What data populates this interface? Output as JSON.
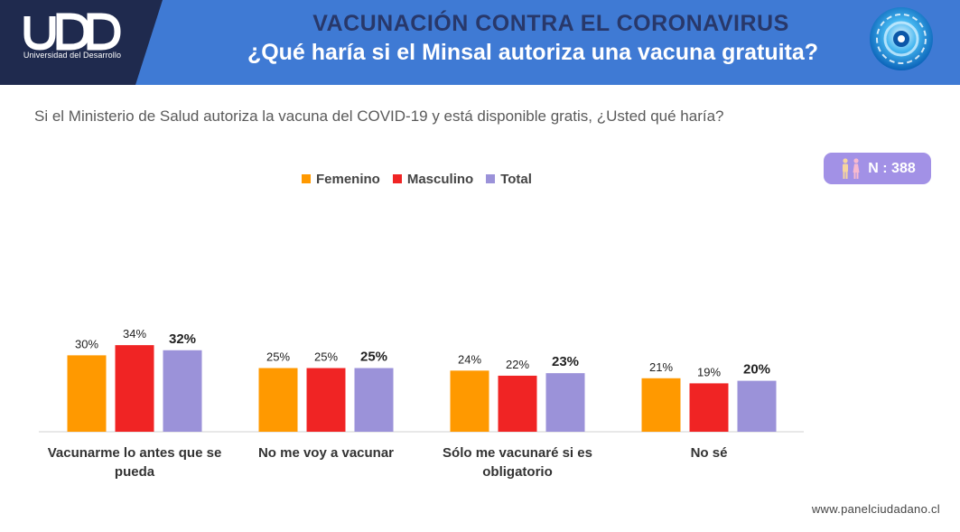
{
  "header": {
    "logo_text": "UDD",
    "logo_caption": "Universidad del Desarrollo",
    "title": "VACUNACIÓN CONTRA EL CORONAVIRUS",
    "subtitle": "¿Qué haría si el Minsal autoriza una vacuna gratuita?"
  },
  "question": "Si el Ministerio de Salud autoriza la vacuna del COVID-19 y está disponible gratis, ¿Usted qué haría?",
  "badge": {
    "label": "N : 388"
  },
  "footer": {
    "url": "www.panelciudadano.cl"
  },
  "colors": {
    "header_bg": "#3f7ad4",
    "logo_bg": "#1f2a4e",
    "femenino": "#ff9900",
    "masculino": "#f02424",
    "total": "#9b92d9",
    "badge_bg": "#a291e6"
  },
  "chart_data": {
    "type": "bar",
    "categories": [
      [
        "Vacunarme lo antes que se",
        "pueda"
      ],
      [
        "No me voy a vacunar"
      ],
      [
        "Sólo me vacunaré si es",
        "obligatorio"
      ],
      [
        "No sé"
      ]
    ],
    "series": [
      {
        "name": "Femenino",
        "color": "#ff9900",
        "values": [
          30,
          25,
          24,
          21
        ],
        "labels": [
          "30%",
          "25%",
          "24%",
          "21%"
        ]
      },
      {
        "name": "Masculino",
        "color": "#f02424",
        "values": [
          34,
          25,
          22,
          19
        ],
        "labels": [
          "34%",
          "25%",
          "22%",
          "19%"
        ]
      },
      {
        "name": "Total",
        "color": "#9b92d9",
        "values": [
          32,
          25,
          23,
          20
        ],
        "labels": [
          "32%",
          "25%",
          "23%",
          "20%"
        ]
      }
    ],
    "legend_position": "top",
    "grid": false,
    "ylim": [
      0,
      40
    ],
    "total_labels_bold": true
  }
}
